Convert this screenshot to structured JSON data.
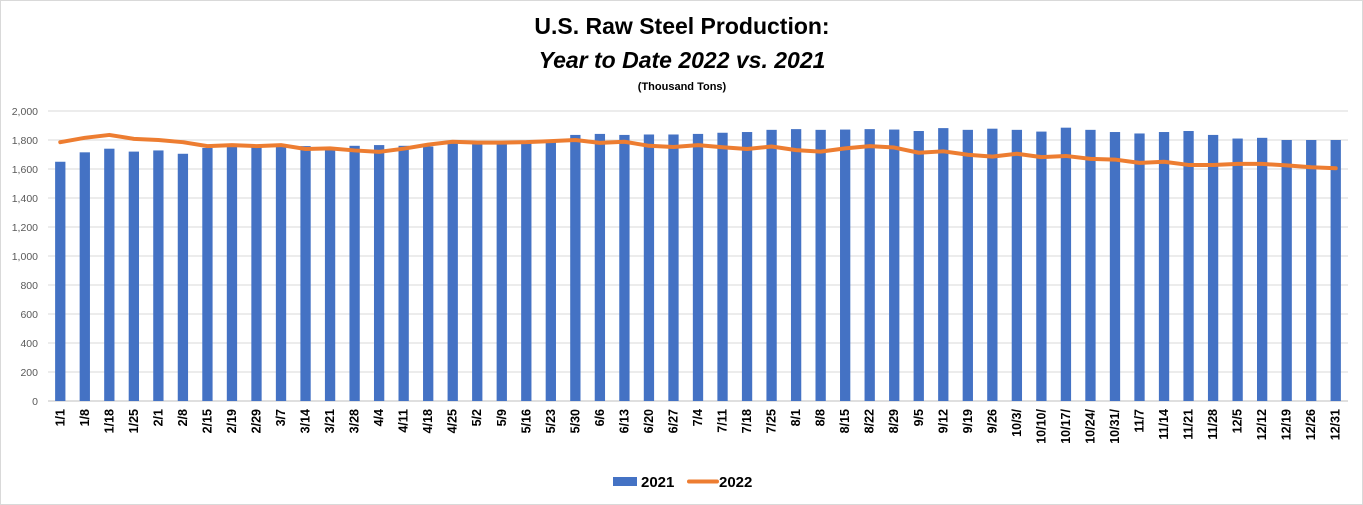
{
  "chart_data": {
    "type": "bar",
    "title_line1": "U.S. Raw Steel Production:",
    "title_line2": "Year to Date 2022 vs. 2021",
    "subtitle": "(Thousand Tons)",
    "ylim": [
      0,
      2000
    ],
    "yticks": [
      0,
      200,
      400,
      600,
      800,
      1000,
      1200,
      1400,
      1600,
      1800,
      2000
    ],
    "ytick_labels": [
      "0",
      "200",
      "400",
      "600",
      "800",
      "1,000",
      "1,200",
      "1,400",
      "1,600",
      "1,800",
      "2,000"
    ],
    "grid": true,
    "legend_position": "bottom",
    "categories": [
      "1/1",
      "1/8",
      "1/18",
      "1/25",
      "2/1",
      "2/8",
      "2/15",
      "2/19",
      "2/29",
      "3/7",
      "3/14",
      "3/21",
      "3/28",
      "4/4",
      "4/11",
      "4/18",
      "4/25",
      "5/2",
      "5/9",
      "5/16",
      "5/23",
      "5/30",
      "6/6",
      "6/13",
      "6/20",
      "6/27",
      "7/4",
      "7/11",
      "7/18",
      "7/25",
      "8/1",
      "8/8",
      "8/15",
      "8/22",
      "8/29",
      "9/5",
      "9/12",
      "9/19",
      "9/26",
      "10/3/",
      "10/10/",
      "10/17/",
      "10/24/",
      "10/31/",
      "11/7",
      "11/14",
      "11/21",
      "11/28",
      "12/5",
      "12/12",
      "12/19",
      "12/26",
      "12/31"
    ],
    "series": [
      {
        "name": "2021",
        "type": "bar",
        "color": "#4472c4",
        "values": [
          1650,
          1715,
          1740,
          1720,
          1728,
          1705,
          1745,
          1755,
          1758,
          1758,
          1758,
          1750,
          1760,
          1765,
          1760,
          1755,
          1780,
          1775,
          1775,
          1780,
          1785,
          1835,
          1842,
          1835,
          1838,
          1838,
          1842,
          1850,
          1855,
          1870,
          1875,
          1870,
          1872,
          1875,
          1872,
          1862,
          1882,
          1870,
          1878,
          1870,
          1858,
          1885,
          1870,
          1855,
          1845,
          1855,
          1862,
          1835,
          1810,
          1815,
          1800,
          1800,
          1800
        ]
      },
      {
        "name": "2022",
        "type": "line",
        "color": "#ed7d31",
        "values": [
          1785,
          1815,
          1835,
          1808,
          1800,
          1785,
          1758,
          1765,
          1758,
          1765,
          1738,
          1742,
          1728,
          1718,
          1740,
          1768,
          1788,
          1782,
          1782,
          1785,
          1792,
          1800,
          1780,
          1788,
          1760,
          1752,
          1765,
          1750,
          1738,
          1755,
          1730,
          1720,
          1742,
          1758,
          1748,
          1712,
          1722,
          1698,
          1685,
          1705,
          1682,
          1690,
          1670,
          1665,
          1642,
          1650,
          1628,
          1628,
          1635,
          1635,
          1625,
          1612,
          1605
        ]
      }
    ]
  }
}
